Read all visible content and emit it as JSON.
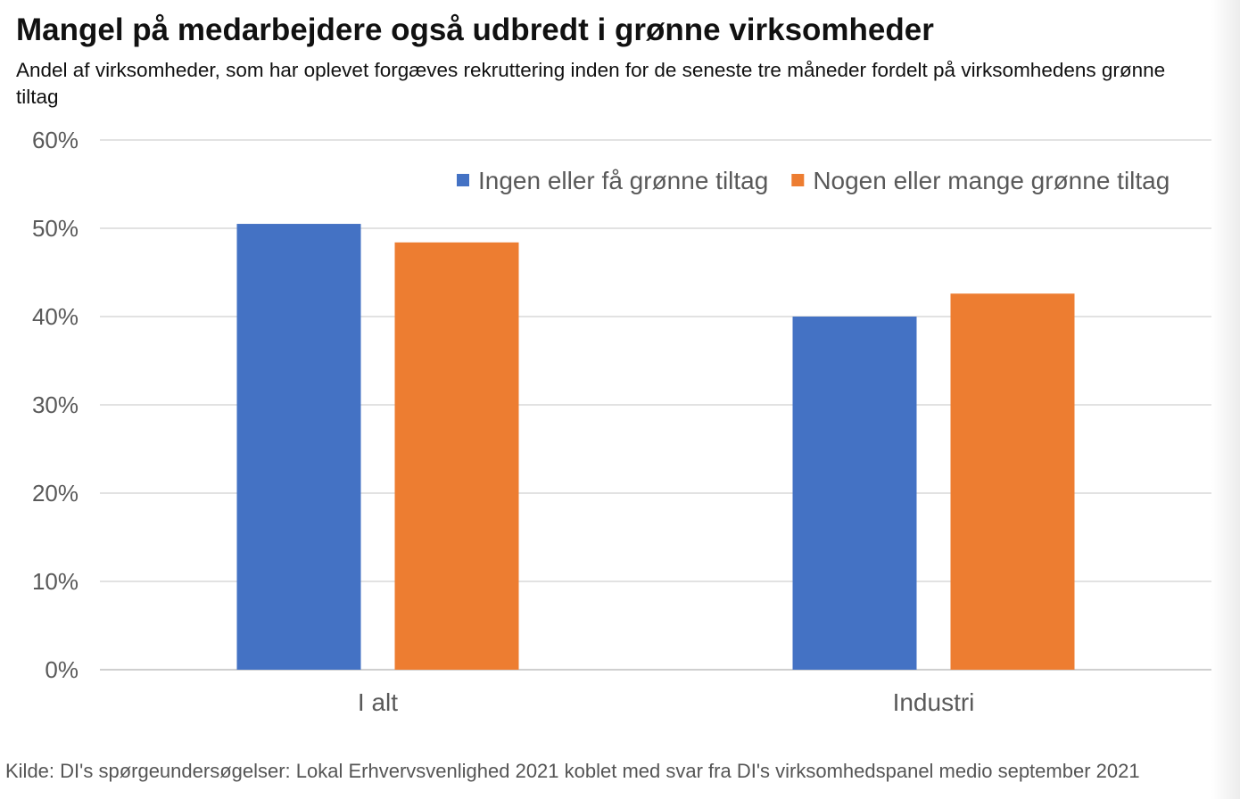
{
  "chart_data": {
    "type": "bar",
    "title": "Mangel på medarbejdere også udbredt i grønne virksomheder",
    "subtitle": "Andel af virksomheder, som har oplevet forgæves rekruttering inden for de seneste tre måneder fordelt på virksomhedens grønne tiltag",
    "categories": [
      "I alt",
      "Industri"
    ],
    "series": [
      {
        "name": "Ingen eller få grønne tiltag",
        "color": "#4472c4",
        "values": [
          50.5,
          40.0
        ]
      },
      {
        "name": "Nogen eller mange grønne tiltag",
        "color": "#ed7d31",
        "values": [
          48.4,
          42.6
        ]
      }
    ],
    "ylim": [
      0,
      60
    ],
    "yticks": [
      "0%",
      "10%",
      "20%",
      "30%",
      "40%",
      "50%",
      "60%"
    ],
    "xlabel": "",
    "ylabel": "",
    "grid": true,
    "legend_position": "top-right"
  },
  "footer": "Kilde: DI's spørgeundersøgelser: Lokal Erhvervsvenlighed 2021 koblet med svar fra DI's virksomhedspanel medio september 2021"
}
